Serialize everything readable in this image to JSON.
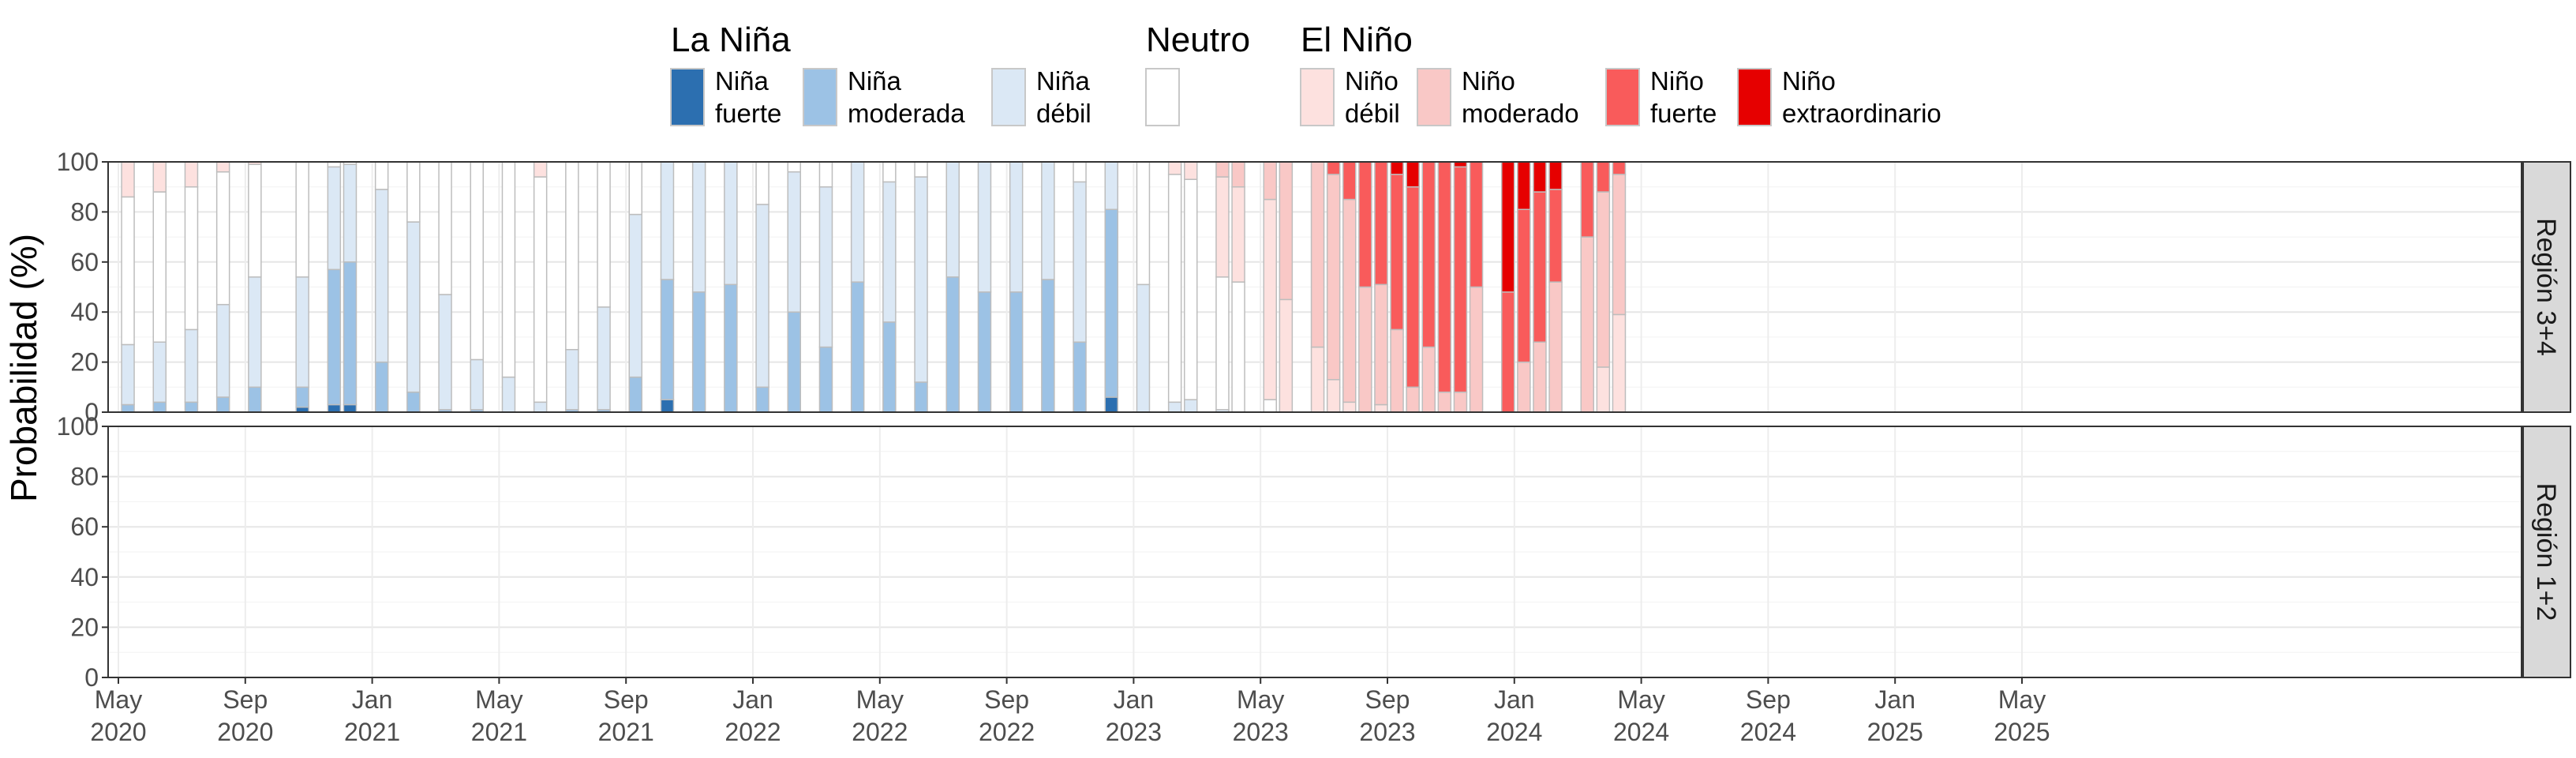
{
  "legend": {
    "groups": [
      {
        "title": "La Niña",
        "items": [
          {
            "key": "nina_fuerte",
            "line1": "Niña",
            "line2": "fuerte",
            "color": "#2c6fb0"
          },
          {
            "key": "nina_moderada",
            "line1": "Niña",
            "line2": "moderada",
            "color": "#9cc2e5"
          },
          {
            "key": "nina_debil",
            "line1": "Niña",
            "line2": "débil",
            "color": "#dbe8f5"
          }
        ]
      },
      {
        "title": "Neutro",
        "items": [
          {
            "key": "neutro",
            "line1": "",
            "line2": "",
            "color": "#ffffff"
          }
        ]
      },
      {
        "title": "El Niño",
        "items": [
          {
            "key": "nino_debil",
            "line1": "Niño",
            "line2": "débil",
            "color": "#fde1df"
          },
          {
            "key": "nino_moderado",
            "line1": "Niño",
            "line2": "moderado",
            "color": "#f9c8c6"
          },
          {
            "key": "nino_fuerte",
            "line1": "Niño",
            "line2": "fuerte",
            "color": "#f95b5b"
          },
          {
            "key": "nino_extraordinario",
            "line1": "Niño",
            "line2": "extraordinario",
            "color": "#e60000"
          }
        ]
      }
    ]
  },
  "chart_data": {
    "type": "bar",
    "stacked": true,
    "ylabel": "Probabilidad (%)",
    "ylim": [
      0,
      100
    ],
    "y_ticks": [
      0,
      20,
      40,
      60,
      80,
      100
    ],
    "x_ticks": [
      {
        "line1": "May",
        "line2": "2020",
        "index": 0
      },
      {
        "line1": "Sep",
        "line2": "2020",
        "index": 4
      },
      {
        "line1": "Jan",
        "line2": "2021",
        "index": 8
      },
      {
        "line1": "May",
        "line2": "2021",
        "index": 12
      },
      {
        "line1": "Sep",
        "line2": "2021",
        "index": 16
      },
      {
        "line1": "Jan",
        "line2": "2022",
        "index": 20
      },
      {
        "line1": "May",
        "line2": "2022",
        "index": 24
      },
      {
        "line1": "Sep",
        "line2": "2022",
        "index": 28
      },
      {
        "line1": "Jan",
        "line2": "2023",
        "index": 32
      },
      {
        "line1": "May",
        "line2": "2023",
        "index": 36
      },
      {
        "line1": "Sep",
        "line2": "2023",
        "index": 40
      },
      {
        "line1": "Jan",
        "line2": "2024",
        "index": 44
      },
      {
        "line1": "May",
        "line2": "2024",
        "index": 48
      },
      {
        "line1": "Sep",
        "line2": "2024",
        "index": 52
      },
      {
        "line1": "Jan",
        "line2": "2025",
        "index": 56
      },
      {
        "line1": "May",
        "line2": "2025",
        "index": 60
      }
    ],
    "categories": [
      "May 2020",
      "Jun 2020",
      "Jul 2020",
      "Aug 2020",
      "Sep 2020",
      "Oct 2020",
      "Nov 2020",
      "Dec 2020",
      "Jan 2021",
      "Feb 2021",
      "Mar 2021",
      "Apr 2021",
      "May 2021",
      "Jun 2021",
      "Jul 2021",
      "Aug 2021",
      "Sep 2021",
      "Oct 2021",
      "Nov 2021",
      "Dec 2021",
      "Jan 2022",
      "Feb 2022",
      "Mar 2022",
      "Apr 2022",
      "May 2022",
      "Jun 2022",
      "Jul 2022",
      "Aug 2022",
      "Sep 2022",
      "Oct 2022",
      "Nov 2022",
      "Dec 2022",
      "Jan 2023",
      "Feb 2023",
      "Mar 2023",
      "Apr 2023",
      "May 2023",
      "Jun 2023",
      "Jul 2023",
      "Aug 2023",
      "Sep 2023",
      "Oct 2023",
      "Nov 2023",
      "Dec 2023",
      "Jan 2024",
      "Feb 2024",
      "Mar 2024",
      "Apr 2024",
      "May 2024",
      "Jun 2024",
      "Jul 2024",
      "Aug 2024",
      "Sep 2024",
      "Oct 2024",
      "Nov 2024",
      "Dec 2024",
      "Jan 2025",
      "Feb 2025",
      "Mar 2025",
      "Apr 2025",
      "May 2025"
    ],
    "stack_order": [
      "nina_fuerte",
      "nina_moderada",
      "nina_debil",
      "neutro",
      "nino_debil",
      "nino_moderado",
      "nino_fuerte",
      "nino_extraordinario"
    ],
    "panels": [
      {
        "name": "Región 3+4",
        "bars": [
          {
            "x": 0.3,
            "v": [
              0,
              3,
              24,
              59,
              14,
              0,
              0,
              0
            ]
          },
          {
            "x": 1.3,
            "v": [
              0,
              4,
              24,
              60,
              12,
              0,
              0,
              0
            ]
          },
          {
            "x": 2.3,
            "v": [
              0,
              4,
              29,
              57,
              10,
              0,
              0,
              0
            ]
          },
          {
            "x": 3.3,
            "v": [
              0,
              6,
              37,
              53,
              4,
              0,
              0,
              0
            ]
          },
          {
            "x": 4.3,
            "v": [
              0,
              10,
              44,
              45,
              1,
              0,
              0,
              0
            ]
          },
          {
            "x": 4.8,
            "v": [
              0,
              0,
              0,
              0,
              0,
              0,
              0,
              0
            ]
          },
          {
            "x": 5.3,
            "v": [
              0,
              0,
              0,
              0,
              0,
              0,
              0,
              0
            ]
          },
          {
            "x": 5.8,
            "v": [
              2,
              8,
              44,
              46,
              0,
              0,
              0,
              0
            ]
          },
          {
            "x": 6.8,
            "v": [
              3,
              54,
              41,
              2,
              0,
              0,
              0,
              0
            ]
          },
          {
            "x": 7.3,
            "v": [
              3,
              57,
              39,
              1,
              0,
              0,
              0,
              0
            ]
          },
          {
            "x": 8.3,
            "v": [
              0,
              20,
              69,
              11,
              0,
              0,
              0,
              0
            ]
          },
          {
            "x": 9.3,
            "v": [
              0,
              8,
              68,
              24,
              0,
              0,
              0,
              0
            ]
          },
          {
            "x": 10.3,
            "v": [
              0,
              1,
              46,
              53,
              0,
              0,
              0,
              0
            ]
          },
          {
            "x": 11.3,
            "v": [
              0,
              1,
              20,
              79,
              0,
              0,
              0,
              0
            ]
          },
          {
            "x": 12.3,
            "v": [
              0,
              0,
              14,
              86,
              0,
              0,
              0,
              0
            ]
          },
          {
            "x": 13.3,
            "v": [
              0,
              0,
              4,
              90,
              6,
              0,
              0,
              0
            ]
          },
          {
            "x": 14.3,
            "v": [
              0,
              1,
              24,
              75,
              0,
              0,
              0,
              0
            ]
          },
          {
            "x": 15.3,
            "v": [
              0,
              1,
              41,
              58,
              0,
              0,
              0,
              0
            ]
          },
          {
            "x": 16.3,
            "v": [
              0,
              14,
              65,
              21,
              0,
              0,
              0,
              0
            ]
          },
          {
            "x": 17.3,
            "v": [
              5,
              48,
              47,
              0,
              0,
              0,
              0,
              0
            ]
          },
          {
            "x": 18.3,
            "v": [
              0,
              48,
              52,
              0,
              0,
              0,
              0,
              0
            ]
          },
          {
            "x": 19.3,
            "v": [
              0,
              51,
              49,
              0,
              0,
              0,
              0,
              0
            ]
          },
          {
            "x": 20.3,
            "v": [
              0,
              10,
              73,
              17,
              0,
              0,
              0,
              0
            ]
          },
          {
            "x": 21.3,
            "v": [
              0,
              40,
              56,
              4,
              0,
              0,
              0,
              0
            ]
          },
          {
            "x": 22.3,
            "v": [
              0,
              26,
              64,
              10,
              0,
              0,
              0,
              0
            ]
          },
          {
            "x": 23.3,
            "v": [
              0,
              52,
              48,
              0,
              0,
              0,
              0,
              0
            ]
          },
          {
            "x": 24.3,
            "v": [
              0,
              36,
              56,
              8,
              0,
              0,
              0,
              0
            ]
          },
          {
            "x": 25.3,
            "v": [
              0,
              12,
              82,
              6,
              0,
              0,
              0,
              0
            ]
          },
          {
            "x": 26.3,
            "v": [
              0,
              54,
              46,
              0,
              0,
              0,
              0,
              0
            ]
          },
          {
            "x": 27.3,
            "v": [
              0,
              48,
              52,
              0,
              0,
              0,
              0,
              0
            ]
          },
          {
            "x": 28.3,
            "v": [
              0,
              48,
              52,
              0,
              0,
              0,
              0,
              0
            ]
          },
          {
            "x": 29.3,
            "v": [
              0,
              53,
              47,
              0,
              0,
              0,
              0,
              0
            ]
          },
          {
            "x": 30.3,
            "v": [
              0,
              28,
              64,
              8,
              0,
              0,
              0,
              0
            ]
          },
          {
            "x": 31.3,
            "v": [
              6,
              75,
              19,
              0,
              0,
              0,
              0,
              0
            ]
          },
          {
            "x": 32.3,
            "v": [
              0,
              0,
              51,
              49,
              0,
              0,
              0,
              0
            ]
          },
          {
            "x": 33.3,
            "v": [
              0,
              0,
              4,
              91,
              5,
              0,
              0,
              0
            ]
          },
          {
            "x": 33.8,
            "v": [
              0,
              0,
              5,
              88,
              7,
              0,
              0,
              0
            ]
          },
          {
            "x": 34.3,
            "v": [
              0,
              0,
              0,
              0,
              0,
              0,
              0,
              0
            ]
          },
          {
            "x": 34.8,
            "v": [
              0,
              0,
              1,
              53,
              40,
              6,
              0,
              0
            ]
          },
          {
            "x": 35.3,
            "v": [
              0,
              0,
              0,
              52,
              38,
              10,
              0,
              0
            ]
          },
          {
            "x": 35.8,
            "v": [
              0,
              0,
              0,
              0,
              0,
              0,
              0,
              0
            ]
          },
          {
            "x": 36.3,
            "v": [
              0,
              0,
              0,
              5,
              80,
              15,
              0,
              0
            ]
          },
          {
            "x": 36.8,
            "v": [
              0,
              0,
              0,
              0,
              45,
              55,
              0,
              0
            ]
          },
          {
            "x": 37.3,
            "v": [
              0,
              0,
              0,
              0,
              0,
              0,
              0,
              0
            ]
          },
          {
            "x": 37.8,
            "v": [
              0,
              0,
              0,
              0,
              26,
              74,
              0,
              0
            ]
          },
          {
            "x": 38.3,
            "v": [
              0,
              0,
              0,
              0,
              13,
              82,
              5,
              0
            ]
          },
          {
            "x": 38.8,
            "v": [
              0,
              0,
              0,
              0,
              4,
              81,
              15,
              0
            ]
          },
          {
            "x": 39.3,
            "v": [
              0,
              0,
              0,
              0,
              0,
              50,
              50,
              0
            ]
          },
          {
            "x": 39.8,
            "v": [
              0,
              0,
              0,
              0,
              3,
              48,
              49,
              0
            ]
          },
          {
            "x": 40.3,
            "v": [
              0,
              0,
              0,
              0,
              0,
              33,
              62,
              5
            ]
          },
          {
            "x": 40.8,
            "v": [
              0,
              0,
              0,
              0,
              0,
              10,
              80,
              10
            ]
          },
          {
            "x": 41.3,
            "v": [
              0,
              0,
              0,
              0,
              0,
              26,
              74,
              0
            ]
          },
          {
            "x": 41.8,
            "v": [
              0,
              0,
              0,
              0,
              0,
              8,
              92,
              0
            ]
          },
          {
            "x": 42.3,
            "v": [
              0,
              0,
              0,
              0,
              0,
              8,
              90,
              2
            ]
          },
          {
            "x": 42.8,
            "v": [
              0,
              0,
              0,
              0,
              0,
              50,
              50,
              0
            ]
          },
          {
            "x": 43.3,
            "v": [
              0,
              0,
              0,
              0,
              0,
              0,
              0,
              0
            ]
          },
          {
            "x": 43.8,
            "v": [
              0,
              0,
              0,
              0,
              0,
              0,
              48,
              52
            ]
          },
          {
            "x": 44.3,
            "v": [
              0,
              0,
              0,
              0,
              0,
              20,
              61,
              19
            ]
          },
          {
            "x": 44.8,
            "v": [
              0,
              0,
              0,
              0,
              0,
              28,
              60,
              12
            ]
          },
          {
            "x": 45.3,
            "v": [
              0,
              0,
              0,
              0,
              0,
              52,
              37,
              11
            ]
          },
          {
            "x": 45.8,
            "v": [
              0,
              0,
              0,
              0,
              0,
              0,
              0,
              0
            ]
          },
          {
            "x": 46.3,
            "v": [
              0,
              0,
              0,
              0,
              0,
              70,
              30,
              0
            ]
          },
          {
            "x": 46.8,
            "v": [
              0,
              0,
              0,
              0,
              18,
              70,
              12,
              0
            ]
          },
          {
            "x": 47.3,
            "v": [
              0,
              0,
              0,
              0,
              39,
              56,
              5,
              0
            ]
          },
          {
            "x": 47.8,
            "v": [
              0,
              0,
              0,
              0,
              0,
              0,
              0,
              0
            ]
          },
          {
            "x": 48.3,
            "v": [
              0,
              0,
              0,
              0,
              0,
              0,
              0,
              0
            ]
          },
          {
            "x": 48.8,
            "v": [
              0,
              0,
              0,
              0,
              0,
              0,
              0,
              0
            ]
          },
          {
            "x": 49.3,
            "v": [
              0,
              0,
              0,
              0,
              0,
              0,
              0,
              0
            ]
          },
          {
            "x": 49.8,
            "v": [
              0,
              0,
              0,
              0,
              0,
              0,
              0,
              0
            ]
          },
          {
            "x": 50.3,
            "v": [
              0,
              0,
              0,
              0,
              0,
              0,
              0,
              0
            ]
          }
        ]
      },
      {
        "name": "Región 1+2",
        "bars": []
      }
    ]
  }
}
